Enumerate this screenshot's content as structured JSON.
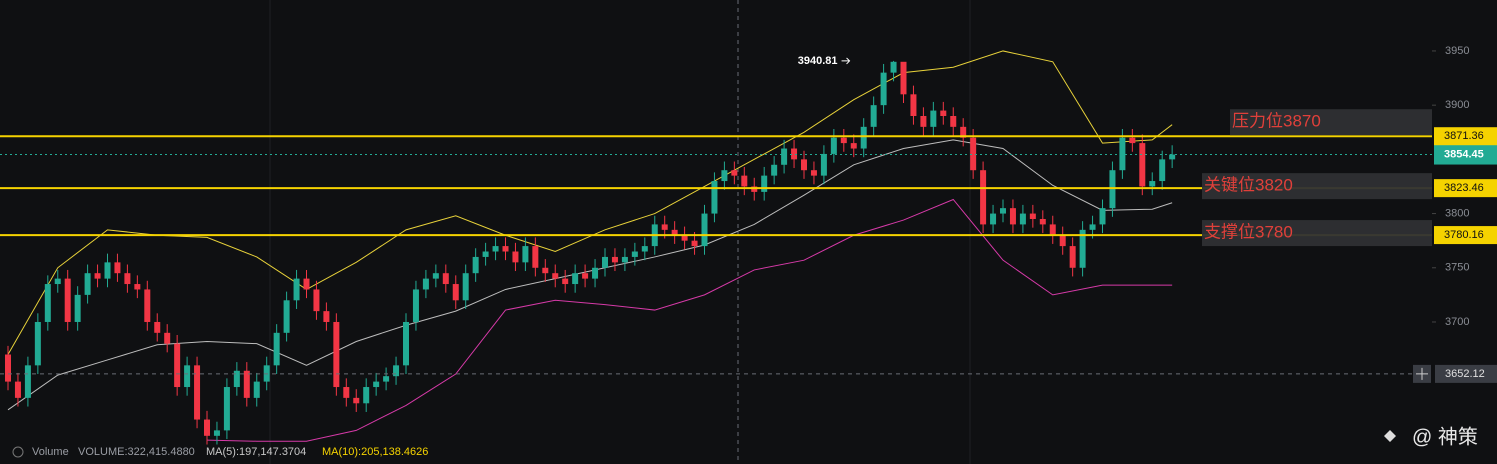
{
  "chart_data": {
    "type": "candlestick",
    "up_color": "#22ab94",
    "down_color": "#f23645",
    "ylim": [
      3569,
      3997
    ],
    "yticks": [
      3700,
      3750,
      3800,
      3900,
      3950
    ],
    "open": [
      3670,
      3645,
      3630,
      3660,
      3700,
      3735,
      3740,
      3700,
      3725,
      3745,
      3740,
      3755,
      3745,
      3735,
      3730,
      3700,
      3690,
      3680,
      3640,
      3660,
      3610,
      3595,
      3600,
      3640,
      3655,
      3630,
      3645,
      3660,
      3690,
      3720,
      3740,
      3730,
      3710,
      3700,
      3640,
      3630,
      3625,
      3640,
      3645,
      3650,
      3660,
      3700,
      3730,
      3740,
      3745,
      3735,
      3720,
      3745,
      3760,
      3765,
      3770,
      3765,
      3755,
      3770,
      3750,
      3745,
      3740,
      3735,
      3745,
      3740,
      3750,
      3760,
      3755,
      3760,
      3765,
      3770,
      3790,
      3785,
      3780,
      3775,
      3770,
      3800,
      3830,
      3840,
      3835,
      3825,
      3820,
      3835,
      3845,
      3860,
      3850,
      3840,
      3835,
      3855,
      3870,
      3865,
      3860,
      3880,
      3900,
      3930,
      3940,
      3910,
      3890,
      3880,
      3895,
      3890,
      3880,
      3870,
      3840,
      3790,
      3800,
      3805,
      3790,
      3800,
      3795,
      3790,
      3780,
      3770,
      3750,
      3785,
      3790,
      3805,
      3840,
      3870,
      3865,
      3825,
      3830,
      3850
    ],
    "high": [
      3678,
      3653,
      3668,
      3708,
      3743,
      3748,
      3748,
      3733,
      3753,
      3753,
      3763,
      3763,
      3753,
      3743,
      3738,
      3708,
      3698,
      3688,
      3668,
      3668,
      3618,
      3608,
      3648,
      3663,
      3663,
      3653,
      3668,
      3698,
      3728,
      3748,
      3748,
      3738,
      3718,
      3708,
      3648,
      3638,
      3648,
      3653,
      3658,
      3668,
      3708,
      3738,
      3748,
      3753,
      3753,
      3743,
      3753,
      3768,
      3773,
      3778,
      3778,
      3773,
      3778,
      3778,
      3758,
      3753,
      3748,
      3753,
      3753,
      3758,
      3768,
      3768,
      3768,
      3773,
      3778,
      3798,
      3798,
      3793,
      3788,
      3783,
      3808,
      3838,
      3848,
      3848,
      3843,
      3833,
      3843,
      3853,
      3868,
      3868,
      3858,
      3848,
      3863,
      3878,
      3878,
      3873,
      3888,
      3908,
      3938,
      3940.81,
      3938,
      3918,
      3898,
      3903,
      3903,
      3898,
      3888,
      3878,
      3848,
      3808,
      3813,
      3813,
      3808,
      3808,
      3803,
      3798,
      3788,
      3778,
      3793,
      3798,
      3813,
      3848,
      3878,
      3878,
      3873,
      3838,
      3858,
      3863
    ],
    "low": [
      3637,
      3622,
      3622,
      3652,
      3692,
      3727,
      3692,
      3692,
      3717,
      3732,
      3732,
      3737,
      3727,
      3722,
      3692,
      3682,
      3672,
      3632,
      3632,
      3602,
      3587,
      3587,
      3592,
      3632,
      3622,
      3622,
      3637,
      3652,
      3682,
      3712,
      3722,
      3702,
      3692,
      3632,
      3622,
      3617,
      3617,
      3632,
      3637,
      3642,
      3652,
      3692,
      3722,
      3732,
      3727,
      3712,
      3712,
      3737,
      3752,
      3757,
      3757,
      3747,
      3747,
      3742,
      3737,
      3732,
      3727,
      3727,
      3732,
      3732,
      3742,
      3747,
      3747,
      3752,
      3757,
      3762,
      3777,
      3772,
      3767,
      3762,
      3762,
      3792,
      3822,
      3827,
      3817,
      3812,
      3812,
      3827,
      3837,
      3842,
      3832,
      3827,
      3827,
      3847,
      3857,
      3852,
      3852,
      3872,
      3892,
      3922,
      3902,
      3882,
      3872,
      3872,
      3882,
      3872,
      3862,
      3832,
      3782,
      3782,
      3792,
      3782,
      3782,
      3787,
      3782,
      3772,
      3762,
      3742,
      3742,
      3777,
      3782,
      3797,
      3832,
      3857,
      3817,
      3817,
      3822,
      3842
    ],
    "close": [
      3645,
      3630,
      3660,
      3700,
      3735,
      3740,
      3700,
      3725,
      3745,
      3740,
      3755,
      3745,
      3735,
      3730,
      3700,
      3690,
      3680,
      3640,
      3660,
      3610,
      3595,
      3600,
      3640,
      3655,
      3630,
      3645,
      3660,
      3690,
      3720,
      3740,
      3730,
      3710,
      3700,
      3640,
      3630,
      3625,
      3640,
      3645,
      3650,
      3660,
      3700,
      3730,
      3740,
      3745,
      3735,
      3720,
      3745,
      3760,
      3765,
      3770,
      3765,
      3755,
      3770,
      3750,
      3745,
      3740,
      3735,
      3745,
      3740,
      3750,
      3760,
      3755,
      3760,
      3765,
      3770,
      3790,
      3785,
      3780,
      3775,
      3770,
      3800,
      3830,
      3840,
      3835,
      3825,
      3820,
      3835,
      3845,
      3860,
      3850,
      3840,
      3835,
      3855,
      3870,
      3865,
      3860,
      3880,
      3900,
      3930,
      3940,
      3910,
      3890,
      3880,
      3895,
      3890,
      3880,
      3870,
      3840,
      3790,
      3800,
      3805,
      3790,
      3800,
      3795,
      3790,
      3780,
      3770,
      3750,
      3785,
      3790,
      3805,
      3840,
      3870,
      3865,
      3825,
      3830,
      3850,
      3854.45
    ],
    "high_marker_index": 89,
    "bands": {
      "x": [
        0,
        5,
        10,
        15,
        20,
        25,
        30,
        35,
        40,
        45,
        50,
        55,
        60,
        65,
        70,
        75,
        80,
        85,
        90,
        95,
        100,
        105,
        110,
        115,
        117
      ],
      "series": [
        {
          "color": "#e8d23a",
          "values": [
            3670,
            3750,
            3785,
            3780,
            3778,
            3760,
            3730,
            3755,
            3785,
            3798,
            3780,
            3765,
            3785,
            3800,
            3825,
            3850,
            3875,
            3905,
            3930,
            3935,
            3950,
            3940,
            3865,
            3868,
            3882
          ]
        },
        {
          "color": "#bdbdbd",
          "values": [
            3619,
            3651,
            3665,
            3679,
            3682,
            3680,
            3660,
            3682,
            3697,
            3710,
            3730,
            3740,
            3750,
            3760,
            3771,
            3790,
            3817,
            3845,
            3860,
            3868,
            3860,
            3826,
            3803,
            3804,
            3810
          ]
        },
        {
          "color": "#d63aa8",
          "values": [
            null,
            null,
            null,
            null,
            3591,
            3590,
            3590,
            3600,
            3623,
            3652,
            3711,
            3720,
            3716,
            3711,
            3725,
            3748,
            3757,
            3780,
            3794,
            3813,
            3757,
            3725,
            3734,
            3734,
            3734
          ]
        }
      ]
    },
    "level_color": "#f5d300",
    "levels": [
      {
        "value": 3871.36,
        "label": "压力位3870"
      },
      {
        "value": 3823.46,
        "label": "关键位3820"
      },
      {
        "value": 3780.16,
        "label": "支撑位3780"
      }
    ],
    "last_price": 3854.45,
    "crosshair_price": 3652.12,
    "volume_texts": [
      "Volume",
      "VOLUME:322,415.4880",
      "MA(5):197,147.3704",
      "MA(10):205,138.4626"
    ],
    "watermark": "@ 神策"
  }
}
